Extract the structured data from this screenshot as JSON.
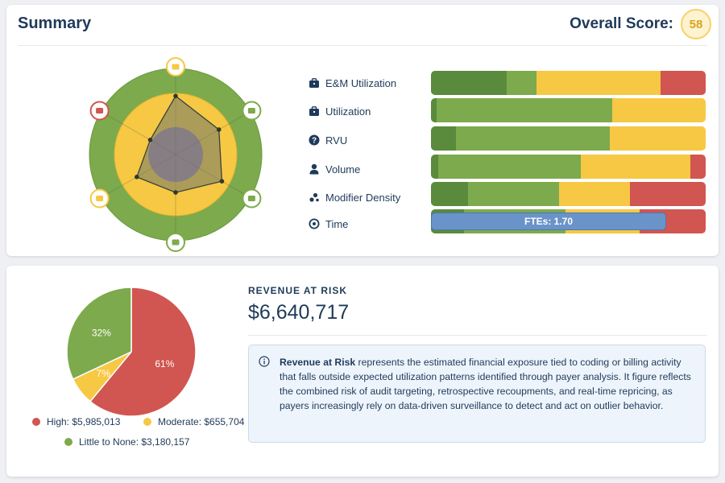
{
  "summary": {
    "title": "Summary",
    "score_label": "Overall Score:",
    "score_value": "58"
  },
  "radar": {
    "axis_icons": [
      "briefcase-icon",
      "briefcase-icon",
      "dollar-icon",
      "flask-icon",
      "share-icon",
      "calendar-icon"
    ],
    "values": [
      0.68,
      0.58,
      0.62,
      0.44,
      0.52,
      0.34
    ]
  },
  "metrics": [
    {
      "label": "E&M Utilization",
      "icon": "briefcase-icon",
      "segments": [
        {
          "color": "dark-green",
          "fraction": 0.275
        },
        {
          "color": "light-green",
          "fraction": 0.11
        },
        {
          "color": "yellow",
          "fraction": 0.45
        },
        {
          "color": "red",
          "fraction": 0.165
        }
      ]
    },
    {
      "label": "Utilization",
      "icon": "briefcase-icon",
      "segments": [
        {
          "color": "dark-green",
          "fraction": 0.02
        },
        {
          "color": "light-green",
          "fraction": 0.64
        },
        {
          "color": "yellow",
          "fraction": 0.34
        }
      ]
    },
    {
      "label": "RVU",
      "icon": "question-icon",
      "segments": [
        {
          "color": "dark-green",
          "fraction": 0.09
        },
        {
          "color": "light-green",
          "fraction": 0.56
        },
        {
          "color": "yellow",
          "fraction": 0.35
        }
      ]
    },
    {
      "label": "Volume",
      "icon": "person-icon",
      "segments": [
        {
          "color": "dark-green",
          "fraction": 0.025
        },
        {
          "color": "light-green",
          "fraction": 0.52
        },
        {
          "color": "yellow",
          "fraction": 0.4
        },
        {
          "color": "red",
          "fraction": 0.055
        }
      ]
    },
    {
      "label": "Modifier Density",
      "icon": "dots-icon",
      "segments": [
        {
          "color": "dark-green",
          "fraction": 0.135
        },
        {
          "color": "light-green",
          "fraction": 0.33
        },
        {
          "color": "yellow",
          "fraction": 0.26
        },
        {
          "color": "red",
          "fraction": 0.275
        }
      ]
    },
    {
      "label": "Time",
      "icon": "clock-icon",
      "segments": [
        {
          "color": "dark-green",
          "fraction": 0.12
        },
        {
          "color": "light-green",
          "fraction": 0.37
        },
        {
          "color": "yellow",
          "fraction": 0.27
        },
        {
          "color": "red",
          "fraction": 0.24
        }
      ]
    }
  ],
  "fte_label": "FTEs: 1.70",
  "revenue": {
    "heading": "REVENUE AT RISK",
    "value": "$6,640,717",
    "info_bold": "Revenue at Risk",
    "info_text": " represents the estimated financial exposure tied to coding or billing activity that falls outside expected utilization patterns identified through payer analysis. It figure reflects the combined risk of audit targeting, retrospective recoupments, and real-time repricing, as payers increasingly rely on data-driven surveillance to detect and act on outlier behavior."
  },
  "pie": {
    "slices": [
      {
        "label": "61%",
        "value": 61,
        "color": "#d15550"
      },
      {
        "label": "7%",
        "value": 7,
        "color": "#f6c844"
      },
      {
        "label": "32%",
        "value": 32,
        "color": "#7daa4c"
      }
    ]
  },
  "legend": {
    "high": "High: $5,985,013",
    "moderate": "Moderate: $655,704",
    "little": "Little to None: $3,180,157"
  },
  "colors": {
    "dark-green": "#5a8a3c",
    "light-green": "#7daa4c",
    "yellow": "#f6c844",
    "red": "#d15550",
    "accent": "#1f3a5a"
  }
}
